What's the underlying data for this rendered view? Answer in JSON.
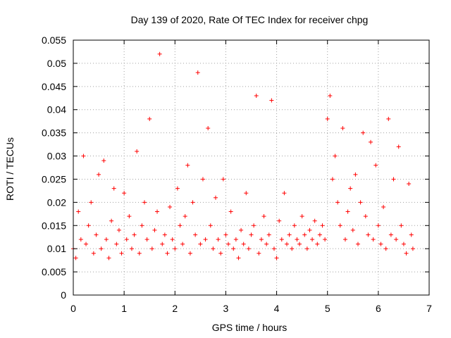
{
  "chart_data": {
    "type": "scatter",
    "title": "Day 139 of 2020, Rate Of TEC Index for receiver chpg",
    "xlabel": "GPS time / hours",
    "ylabel": "ROTI / TECUs",
    "xlim": [
      0,
      7
    ],
    "ylim": [
      0,
      0.055
    ],
    "x_ticks": [
      "0",
      "1",
      "2",
      "3",
      "4",
      "5",
      "6",
      "7"
    ],
    "y_ticks": [
      "0",
      "0.005",
      "0.01",
      "0.015",
      "0.02",
      "0.025",
      "0.03",
      "0.035",
      "0.04",
      "0.045",
      "0.05",
      "0.055"
    ],
    "grid": true,
    "marker": "+",
    "marker_color": "#ff0000",
    "series": [
      {
        "name": "ROTI",
        "x": [
          0.0,
          0.05,
          0.1,
          0.15,
          0.2,
          0.25,
          0.3,
          0.35,
          0.4,
          0.45,
          0.5,
          0.55,
          0.6,
          0.65,
          0.7,
          0.75,
          0.8,
          0.85,
          0.9,
          0.95,
          1.0,
          1.05,
          1.1,
          1.15,
          1.2,
          1.25,
          1.3,
          1.35,
          1.4,
          1.45,
          1.5,
          1.55,
          1.6,
          1.65,
          1.7,
          1.75,
          1.8,
          1.85,
          1.9,
          1.95,
          2.0,
          2.05,
          2.1,
          2.15,
          2.2,
          2.25,
          2.3,
          2.35,
          2.4,
          2.45,
          2.5,
          2.55,
          2.6,
          2.65,
          2.7,
          2.75,
          2.8,
          2.85,
          2.9,
          2.95,
          3.0,
          3.05,
          3.1,
          3.15,
          3.2,
          3.25,
          3.3,
          3.35,
          3.4,
          3.45,
          3.5,
          3.55,
          3.6,
          3.65,
          3.7,
          3.75,
          3.8,
          3.85,
          3.9,
          3.95,
          4.0,
          4.05,
          4.1,
          4.15,
          4.2,
          4.25,
          4.3,
          4.35,
          4.4,
          4.45,
          4.5,
          4.55,
          4.6,
          4.65,
          4.7,
          4.75,
          4.8,
          4.85,
          4.9,
          4.95,
          5.0,
          5.05,
          5.1,
          5.15,
          5.2,
          5.25,
          5.3,
          5.35,
          5.4,
          5.45,
          5.5,
          5.55,
          5.6,
          5.65,
          5.7,
          5.75,
          5.8,
          5.85,
          5.9,
          5.95,
          6.0,
          6.05,
          6.1,
          6.15,
          6.2,
          6.25,
          6.3,
          6.35,
          6.4,
          6.45,
          6.5,
          6.55,
          6.6,
          6.65,
          6.68
        ],
        "y": [
          0.01,
          0.008,
          0.018,
          0.012,
          0.03,
          0.011,
          0.015,
          0.02,
          0.009,
          0.013,
          0.026,
          0.01,
          0.029,
          0.012,
          0.008,
          0.016,
          0.023,
          0.011,
          0.014,
          0.009,
          0.022,
          0.012,
          0.017,
          0.01,
          0.013,
          0.031,
          0.009,
          0.015,
          0.02,
          0.012,
          0.038,
          0.01,
          0.014,
          0.018,
          0.052,
          0.011,
          0.013,
          0.009,
          0.019,
          0.012,
          0.01,
          0.023,
          0.015,
          0.011,
          0.017,
          0.028,
          0.009,
          0.02,
          0.013,
          0.048,
          0.011,
          0.025,
          0.012,
          0.036,
          0.015,
          0.01,
          0.021,
          0.012,
          0.009,
          0.025,
          0.013,
          0.011,
          0.018,
          0.01,
          0.012,
          0.008,
          0.014,
          0.011,
          0.022,
          0.01,
          0.013,
          0.015,
          0.043,
          0.009,
          0.012,
          0.017,
          0.011,
          0.013,
          0.042,
          0.01,
          0.008,
          0.016,
          0.012,
          0.022,
          0.011,
          0.013,
          0.01,
          0.015,
          0.012,
          0.011,
          0.017,
          0.013,
          0.01,
          0.014,
          0.012,
          0.016,
          0.011,
          0.013,
          0.015,
          0.012,
          0.038,
          0.043,
          0.025,
          0.03,
          0.02,
          0.015,
          0.036,
          0.012,
          0.018,
          0.023,
          0.014,
          0.026,
          0.011,
          0.02,
          0.035,
          0.017,
          0.013,
          0.033,
          0.012,
          0.028,
          0.015,
          0.011,
          0.019,
          0.01,
          0.038,
          0.013,
          0.025,
          0.012,
          0.032,
          0.015,
          0.011,
          0.009,
          0.024,
          0.013,
          0.01
        ]
      }
    ]
  }
}
